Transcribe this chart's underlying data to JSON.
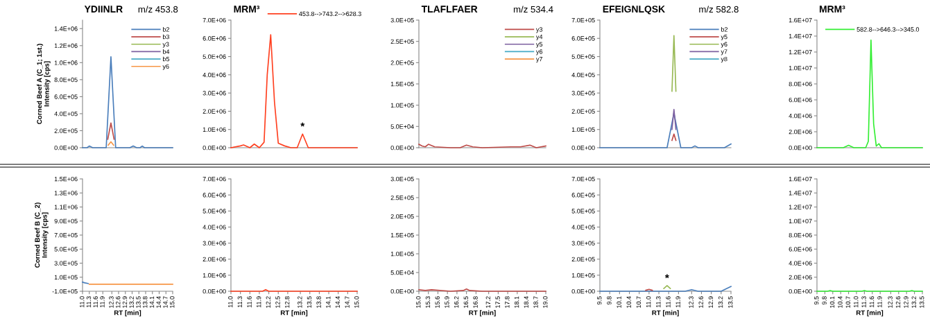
{
  "chart_data": [
    {
      "type": "line",
      "title": "YDIINLR",
      "subtitle": "m/z 453.8",
      "ylabel": "Corned Beef A (C_1; 1st.)\nIntensity [cps]",
      "tick_labels": "y",
      "legend": "top right",
      "marker": "none",
      "line_style": "solid",
      "grid": false,
      "xlim": [
        11.0,
        15.0
      ],
      "ylim": [
        0,
        1500000
      ],
      "yticks": [
        {
          "value": 0,
          "label": "0.0E+00"
        },
        {
          "value": 200000,
          "label": "2.0E+05"
        },
        {
          "value": 400000,
          "label": "4.0E+05"
        },
        {
          "value": 600000,
          "label": "6.0E+05"
        },
        {
          "value": 800000,
          "label": "8.0E+05"
        },
        {
          "value": 1000000,
          "label": "1.0E+06"
        },
        {
          "value": 1200000,
          "label": "1.2E+06"
        },
        {
          "value": 1400000,
          "label": "1.4E+06"
        }
      ],
      "series": [
        {
          "name": "b2",
          "color": "#4a7ebb",
          "x": [
            11.0,
            11.2,
            11.3,
            11.45,
            12.05,
            12.26,
            12.47,
            13.1,
            13.25,
            13.4,
            13.55,
            13.65,
            13.75,
            15.0
          ],
          "values": [
            0,
            0,
            20000,
            0,
            0,
            1070000,
            0,
            0,
            20000,
            0,
            0,
            20000,
            0,
            0
          ]
        },
        {
          "name": "b3",
          "color": "#be4b48",
          "x": [
            12.12,
            12.26,
            12.4
          ],
          "values": [
            100000,
            290000,
            100000
          ]
        },
        {
          "name": "y3",
          "color": "#98b954"
        },
        {
          "name": "b4",
          "color": "#7d60a0"
        },
        {
          "name": "b5",
          "color": "#46aac5"
        },
        {
          "name": "y6",
          "color": "#f79646",
          "x": [
            12.14,
            12.26,
            12.38
          ],
          "values": [
            30000,
            70000,
            30000
          ]
        }
      ]
    },
    {
      "type": "line",
      "title": "MRM³",
      "tick_labels": "y",
      "legend": "top",
      "marker": "none",
      "line_style": "solid",
      "grid": false,
      "xlim": [
        11.0,
        15.0
      ],
      "ylim": [
        0,
        7000000
      ],
      "yticks": [
        {
          "value": 0,
          "label": "0.0E+00"
        },
        {
          "value": 1000000,
          "label": "1.0E+06"
        },
        {
          "value": 2000000,
          "label": "2.0E+06"
        },
        {
          "value": 3000000,
          "label": "3.0E+06"
        },
        {
          "value": 4000000,
          "label": "4.0E+06"
        },
        {
          "value": 5000000,
          "label": "5.0E+06"
        },
        {
          "value": 6000000,
          "label": "6.0E+06"
        },
        {
          "value": 7000000,
          "label": "7.0E+06"
        }
      ],
      "annotations": [
        {
          "text": "*",
          "x": 13.27,
          "y": 750000
        }
      ],
      "series": [
        {
          "name": "453.8-->743.2-->628.3",
          "color": "#ff4020",
          "x": [
            11.0,
            11.3,
            11.4,
            11.6,
            11.74,
            11.9,
            12.05,
            12.15,
            12.26,
            12.38,
            12.5,
            12.7,
            12.9,
            13.1,
            13.27,
            13.45,
            13.6,
            15.0
          ],
          "values": [
            0,
            100000,
            150000,
            0,
            200000,
            0,
            300000,
            4000000,
            6200000,
            2500000,
            250000,
            100000,
            0,
            0,
            750000,
            0,
            0,
            0
          ]
        }
      ]
    },
    {
      "type": "line",
      "title": "TLAFLFAER",
      "subtitle": "m/z 534.4",
      "tick_labels": "y",
      "legend": "top right",
      "marker": "none",
      "line_style": "solid",
      "grid": false,
      "xlim": [
        15.0,
        19.0
      ],
      "ylim": [
        0,
        300000
      ],
      "yticks": [
        {
          "value": 0,
          "label": "0.0E+00"
        },
        {
          "value": 50000,
          "label": "5.0E+04"
        },
        {
          "value": 100000,
          "label": "1.0E+05"
        },
        {
          "value": 150000,
          "label": "1.5E+05"
        },
        {
          "value": 200000,
          "label": "2.0E+05"
        },
        {
          "value": 250000,
          "label": "2.5E+05"
        },
        {
          "value": 300000,
          "label": "3.0E+05"
        }
      ],
      "series": [
        {
          "name": "y3",
          "color": "#be4b48",
          "x": [
            15.0,
            15.1,
            15.2,
            15.3,
            15.5,
            16.0,
            16.3,
            16.5,
            16.7,
            17.0,
            17.9,
            18.2,
            18.5,
            18.7,
            19.0
          ],
          "values": [
            8000,
            4000,
            2000,
            8000,
            2000,
            0,
            0,
            6000,
            2000,
            0,
            2000,
            2000,
            6000,
            0,
            4000
          ]
        },
        {
          "name": "y4",
          "color": "#98b954"
        },
        {
          "name": "y5",
          "color": "#7d60a0"
        },
        {
          "name": "y6",
          "color": "#46aac5"
        },
        {
          "name": "y7",
          "color": "#f79646"
        }
      ]
    },
    {
      "type": "line",
      "title": "EFEIGNLQSK",
      "subtitle": "m/z 582.8",
      "tick_labels": "y",
      "legend": "top right",
      "marker": "none",
      "line_style": "solid",
      "grid": false,
      "xlim": [
        9.5,
        13.5
      ],
      "ylim": [
        0,
        700000
      ],
      "yticks": [
        {
          "value": 0,
          "label": "0.0E+00"
        },
        {
          "value": 100000,
          "label": "1.0E+05"
        },
        {
          "value": 200000,
          "label": "2.0E+05"
        },
        {
          "value": 300000,
          "label": "3.0E+05"
        },
        {
          "value": 400000,
          "label": "4.0E+05"
        },
        {
          "value": 500000,
          "label": "5.0E+05"
        },
        {
          "value": 600000,
          "label": "6.0E+05"
        },
        {
          "value": 700000,
          "label": "7.0E+05"
        }
      ],
      "series": [
        {
          "name": "b2",
          "color": "#4a7ebb",
          "x": [
            9.5,
            10.7,
            11.55,
            11.76,
            11.97,
            12.3,
            12.4,
            12.5,
            13.3,
            13.5
          ],
          "values": [
            0,
            0,
            0,
            190000,
            0,
            0,
            10000,
            0,
            0,
            20000
          ]
        },
        {
          "name": "y5",
          "color": "#be4b48",
          "x": [
            11.7,
            11.76,
            11.82
          ],
          "values": [
            40000,
            75000,
            40000
          ]
        },
        {
          "name": "y6",
          "color": "#98b954",
          "x": [
            11.7,
            11.76,
            11.82
          ],
          "values": [
            310000,
            615000,
            310000
          ]
        },
        {
          "name": "y7",
          "color": "#7d60a0",
          "x": [
            11.7,
            11.76,
            11.82
          ],
          "values": [
            100000,
            210000,
            100000
          ]
        },
        {
          "name": "y8",
          "color": "#46aac5"
        }
      ]
    },
    {
      "type": "line",
      "title": "MRM³",
      "tick_labels": "y",
      "legend": "top right",
      "marker": "none",
      "line_style": "solid",
      "grid": false,
      "xlim": [
        9.5,
        13.5
      ],
      "ylim": [
        0,
        16000000
      ],
      "yticks": [
        {
          "value": 0,
          "label": "0.0E+00"
        },
        {
          "value": 2000000,
          "label": "2.0E+06"
        },
        {
          "value": 4000000,
          "label": "4.0E+06"
        },
        {
          "value": 6000000,
          "label": "6.0E+06"
        },
        {
          "value": 8000000,
          "label": "8.0E+06"
        },
        {
          "value": 10000000,
          "label": "1.0E+07"
        },
        {
          "value": 12000000,
          "label": "1.2E+07"
        },
        {
          "value": 14000000,
          "label": "1.4E+07"
        },
        {
          "value": 16000000,
          "label": "1.6E+07"
        }
      ],
      "series": [
        {
          "name": "582.8-->646.3-->345.0",
          "color": "#33ee33",
          "x": [
            9.5,
            10.5,
            10.7,
            10.9,
            11.35,
            11.45,
            11.55,
            11.65,
            11.75,
            11.85,
            11.95,
            12.1,
            13.5
          ],
          "values": [
            0,
            0,
            300000,
            0,
            0,
            800000,
            13500000,
            3000000,
            200000,
            500000,
            0,
            0,
            0
          ]
        }
      ]
    },
    {
      "type": "line",
      "xlabel": "RT [min]",
      "ylabel": "Corned Beef B (C_2)\nIntensity [cps]",
      "marker": "none",
      "line_style": "solid",
      "grid": false,
      "xlim": [
        11.0,
        15.0
      ],
      "ylim": [
        -100000,
        1500000
      ],
      "xticks": [
        {
          "value": 11.0,
          "label": "11.0"
        },
        {
          "value": 11.3,
          "label": "11.3"
        },
        {
          "value": 11.6,
          "label": "11.6"
        },
        {
          "value": 11.9,
          "label": "11.9"
        },
        {
          "value": 12.3,
          "label": "12.3"
        },
        {
          "value": 12.6,
          "label": "12.6"
        },
        {
          "value": 12.9,
          "label": "12.9"
        },
        {
          "value": 13.2,
          "label": "13.2"
        },
        {
          "value": 13.5,
          "label": "13.5"
        },
        {
          "value": 13.8,
          "label": "13.8"
        },
        {
          "value": 14.1,
          "label": "14.1"
        },
        {
          "value": 14.4,
          "label": "14.4"
        },
        {
          "value": 14.7,
          "label": "14.7"
        },
        {
          "value": 15.0,
          "label": "15.0"
        }
      ],
      "yticks": [
        {
          "value": -100000,
          "label": "-1.0E+05"
        },
        {
          "value": 100000,
          "label": "1.0E+05"
        },
        {
          "value": 300000,
          "label": "3.0E+05"
        },
        {
          "value": 500000,
          "label": "5.0E+05"
        },
        {
          "value": 700000,
          "label": "7.0E+05"
        },
        {
          "value": 900000,
          "label": "9.0E+05"
        },
        {
          "value": 1100000,
          "label": "1.1E+06"
        },
        {
          "value": 1300000,
          "label": "1.3E+06"
        },
        {
          "value": 1500000,
          "label": "1.5E+06"
        }
      ],
      "series": [
        {
          "color": "#4a7ebb",
          "x": [
            11.0,
            11.1,
            11.25
          ],
          "values": [
            30000,
            20000,
            10000
          ]
        },
        {
          "color": "#f79646",
          "x": [
            11.3,
            13.0,
            15.0
          ],
          "values": [
            0,
            0,
            0
          ]
        }
      ]
    },
    {
      "type": "line",
      "xlabel": "RT [min]",
      "marker": "none",
      "line_style": "solid",
      "grid": false,
      "xlim": [
        11.0,
        15.0
      ],
      "ylim": [
        0,
        7000000
      ],
      "xticks": [
        {
          "value": 11.0,
          "label": "11.0"
        },
        {
          "value": 11.3,
          "label": "11.3"
        },
        {
          "value": 11.6,
          "label": "11.6"
        },
        {
          "value": 11.9,
          "label": "11.9"
        },
        {
          "value": 12.2,
          "label": "12.2"
        },
        {
          "value": 12.5,
          "label": "12.5"
        },
        {
          "value": 12.8,
          "label": "12.8"
        },
        {
          "value": 13.2,
          "label": "13.2"
        },
        {
          "value": 13.5,
          "label": "13.5"
        },
        {
          "value": 13.8,
          "label": "13.8"
        },
        {
          "value": 14.1,
          "label": "14.1"
        },
        {
          "value": 14.4,
          "label": "14.4"
        },
        {
          "value": 14.7,
          "label": "14.7"
        },
        {
          "value": 15.0,
          "label": "15.0"
        }
      ],
      "yticks": [
        {
          "value": 0,
          "label": "0.0E+00"
        },
        {
          "value": 1000000,
          "label": "1.0E+06"
        },
        {
          "value": 2000000,
          "label": "2.0E+06"
        },
        {
          "value": 3000000,
          "label": "3.0E+06"
        },
        {
          "value": 4000000,
          "label": "4.0E+06"
        },
        {
          "value": 5000000,
          "label": "5.0E+06"
        },
        {
          "value": 6000000,
          "label": "6.0E+06"
        },
        {
          "value": 7000000,
          "label": "7.0E+06"
        }
      ],
      "series": [
        {
          "color": "#ff4020",
          "x": [
            11.0,
            12.0,
            12.1,
            12.2,
            15.0
          ],
          "values": [
            0,
            0,
            100000,
            0,
            0
          ]
        }
      ]
    },
    {
      "type": "line",
      "xlabel": "RT [min]",
      "marker": "none",
      "line_style": "solid",
      "grid": false,
      "xlim": [
        15.0,
        19.0
      ],
      "ylim": [
        0,
        300000
      ],
      "xticks": [
        {
          "value": 15.0,
          "label": "15.0"
        },
        {
          "value": 15.3,
          "label": "15.3"
        },
        {
          "value": 15.6,
          "label": "15.6"
        },
        {
          "value": 15.9,
          "label": "15.9"
        },
        {
          "value": 16.2,
          "label": "16.2"
        },
        {
          "value": 16.5,
          "label": "16.5"
        },
        {
          "value": 16.8,
          "label": "16.8"
        },
        {
          "value": 17.2,
          "label": "17.2"
        },
        {
          "value": 17.5,
          "label": "17.5"
        },
        {
          "value": 17.8,
          "label": "17.8"
        },
        {
          "value": 18.1,
          "label": "18.1"
        },
        {
          "value": 18.4,
          "label": "18.4"
        },
        {
          "value": 18.7,
          "label": "18.7"
        },
        {
          "value": 19.0,
          "label": "19.0"
        }
      ],
      "yticks": [
        {
          "value": 0,
          "label": "0.0E+00"
        },
        {
          "value": 50000,
          "label": "5.0E+04"
        },
        {
          "value": 100000,
          "label": "1.0E+05"
        },
        {
          "value": 150000,
          "label": "1.5E+05"
        },
        {
          "value": 200000,
          "label": "2.0E+05"
        },
        {
          "value": 250000,
          "label": "2.5E+05"
        },
        {
          "value": 300000,
          "label": "3.0E+05"
        }
      ],
      "series": [
        {
          "color": "#be4b48",
          "x": [
            15.0,
            15.2,
            15.4,
            16.0,
            16.4,
            16.5,
            16.6,
            17.0,
            19.0
          ],
          "values": [
            4000,
            2000,
            4000,
            0,
            2000,
            6000,
            2000,
            0,
            0
          ]
        }
      ]
    },
    {
      "type": "line",
      "xlabel": "RT [min]",
      "marker": "none",
      "line_style": "solid",
      "grid": false,
      "xlim": [
        9.5,
        13.5
      ],
      "ylim": [
        0,
        700000
      ],
      "annotations": [
        {
          "text": "*",
          "x": 11.55,
          "y": 35000
        }
      ],
      "xticks": [
        {
          "value": 9.5,
          "label": "9.5"
        },
        {
          "value": 9.8,
          "label": "9.8"
        },
        {
          "value": 10.1,
          "label": "10.1"
        },
        {
          "value": 10.4,
          "label": "10.4"
        },
        {
          "value": 10.7,
          "label": "10.7"
        },
        {
          "value": 11.0,
          "label": "11.0"
        },
        {
          "value": 11.3,
          "label": "11.3"
        },
        {
          "value": 11.6,
          "label": "11.6"
        },
        {
          "value": 11.9,
          "label": "11.9"
        },
        {
          "value": 12.3,
          "label": "12.3"
        },
        {
          "value": 12.6,
          "label": "12.6"
        },
        {
          "value": 12.9,
          "label": "12.9"
        },
        {
          "value": 13.2,
          "label": "13.2"
        },
        {
          "value": 13.5,
          "label": "13.5"
        }
      ],
      "yticks": [
        {
          "value": 0,
          "label": "0.0E+00"
        },
        {
          "value": 100000,
          "label": "1.0E+05"
        },
        {
          "value": 200000,
          "label": "2.0E+05"
        },
        {
          "value": 300000,
          "label": "3.0E+05"
        },
        {
          "value": 400000,
          "label": "4.0E+05"
        },
        {
          "value": 500000,
          "label": "5.0E+05"
        },
        {
          "value": 600000,
          "label": "6.0E+05"
        },
        {
          "value": 700000,
          "label": "7.0E+05"
        }
      ],
      "series": [
        {
          "color": "#4a7ebb",
          "x": [
            9.5,
            12.1,
            12.3,
            12.5,
            13.2,
            13.5
          ],
          "values": [
            0,
            0,
            10000,
            0,
            0,
            30000
          ]
        },
        {
          "color": "#be4b48",
          "x": [
            10.9,
            11.0,
            11.1
          ],
          "values": [
            6000,
            12000,
            6000
          ]
        },
        {
          "color": "#98b954",
          "x": [
            11.45,
            11.55,
            11.65
          ],
          "values": [
            17000,
            35000,
            17000
          ]
        }
      ]
    },
    {
      "type": "line",
      "xlabel": "RT [min]",
      "marker": "none",
      "line_style": "solid",
      "grid": false,
      "xlim": [
        9.5,
        13.5
      ],
      "ylim": [
        0,
        16000000
      ],
      "xticks": [
        {
          "value": 9.5,
          "label": "9.5"
        },
        {
          "value": 9.8,
          "label": "9.8"
        },
        {
          "value": 10.1,
          "label": "10.1"
        },
        {
          "value": 10.4,
          "label": "10.4"
        },
        {
          "value": 10.7,
          "label": "10.7"
        },
        {
          "value": 11.0,
          "label": "11.0"
        },
        {
          "value": 11.3,
          "label": "11.3"
        },
        {
          "value": 11.6,
          "label": "11.6"
        },
        {
          "value": 11.9,
          "label": "11.9"
        },
        {
          "value": 12.3,
          "label": "12.3"
        },
        {
          "value": 12.6,
          "label": "12.6"
        },
        {
          "value": 12.9,
          "label": "12.9"
        },
        {
          "value": 13.2,
          "label": "13.2"
        },
        {
          "value": 13.5,
          "label": "13.5"
        }
      ],
      "yticks": [
        {
          "value": 0,
          "label": "0.0E+00"
        },
        {
          "value": 2000000,
          "label": "2.0E+06"
        },
        {
          "value": 4000000,
          "label": "4.0E+06"
        },
        {
          "value": 6000000,
          "label": "6.0E+06"
        },
        {
          "value": 8000000,
          "label": "8.0E+06"
        },
        {
          "value": 10000000,
          "label": "1.0E+07"
        },
        {
          "value": 12000000,
          "label": "1.2E+07"
        },
        {
          "value": 14000000,
          "label": "1.4E+07"
        },
        {
          "value": 16000000,
          "label": "1.6E+07"
        }
      ],
      "series": [
        {
          "color": "#33ee33",
          "x": [
            9.5,
            9.9,
            10.0,
            10.1,
            11.2,
            11.3,
            11.4,
            13.0,
            13.1,
            13.2,
            13.5
          ],
          "values": [
            0,
            0,
            100000,
            0,
            0,
            100000,
            0,
            0,
            100000,
            0,
            0
          ]
        }
      ]
    }
  ]
}
